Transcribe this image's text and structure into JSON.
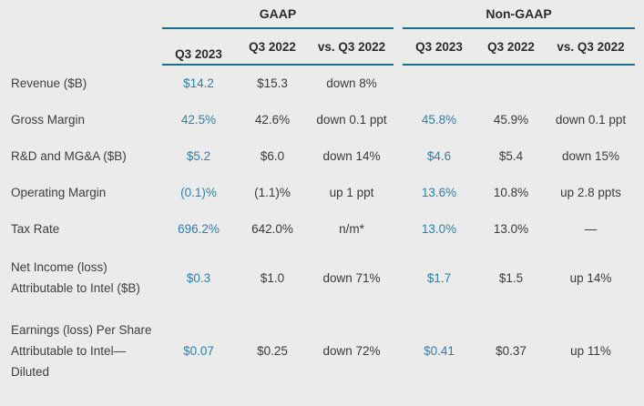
{
  "colors": {
    "background": "#ebebeb",
    "rule_teal": "#1d6e8a",
    "current_quarter_blue": "#2a80ab",
    "text": "#3a3a3a"
  },
  "table": {
    "groups": {
      "gaap": "GAAP",
      "non_gaap": "Non-GAAP"
    },
    "column_headers": {
      "gaap_q3_2023": "Q3 2023",
      "gaap_q3_2022": "Q3 2022",
      "gaap_vs": "vs. Q3 2022",
      "ng_q3_2023": "Q3 2023",
      "ng_q3_2022": "Q3 2022",
      "ng_vs": "vs. Q3 2022"
    },
    "rows": [
      {
        "lines": [
          "Revenue ($B)",
          "",
          ""
        ],
        "cells": [
          "$14.2",
          "$15.3",
          "down 8%",
          "",
          "",
          ""
        ]
      },
      {
        "lines": [
          "Gross Margin",
          "",
          ""
        ],
        "cells": [
          "42.5%",
          "42.6%",
          "down 0.1 ppt",
          "45.8%",
          "45.9%",
          "down 0.1 ppt"
        ]
      },
      {
        "lines": [
          "R&D and MG&A ($B)",
          "",
          ""
        ],
        "cells": [
          "$5.2",
          "$6.0",
          "down 14%",
          "$4.6",
          "$5.4",
          "down 15%"
        ]
      },
      {
        "lines": [
          "Operating Margin",
          "",
          ""
        ],
        "cells": [
          "(0.1)%",
          "(1.1)%",
          "up 1 ppt",
          "13.6%",
          "10.8%",
          "up 2.8 ppts"
        ]
      },
      {
        "lines": [
          "Tax Rate",
          "",
          ""
        ],
        "cells": [
          "696.2%",
          "642.0%",
          "n/m*",
          "13.0%",
          "13.0%",
          "—"
        ]
      },
      {
        "lines": [
          "Net Income (loss)",
          "Attributable to Intel ($B)",
          ""
        ],
        "cells": [
          "$0.3",
          "$1.0",
          "down 71%",
          "$1.7",
          "$1.5",
          "up 14%"
        ]
      },
      {
        "lines": [
          "Earnings (loss) Per Share",
          "Attributable to Intel—",
          "Diluted"
        ],
        "cells": [
          "$0.07",
          "$0.25",
          "down 72%",
          "$0.41",
          "$0.37",
          "up 11%"
        ]
      }
    ]
  }
}
